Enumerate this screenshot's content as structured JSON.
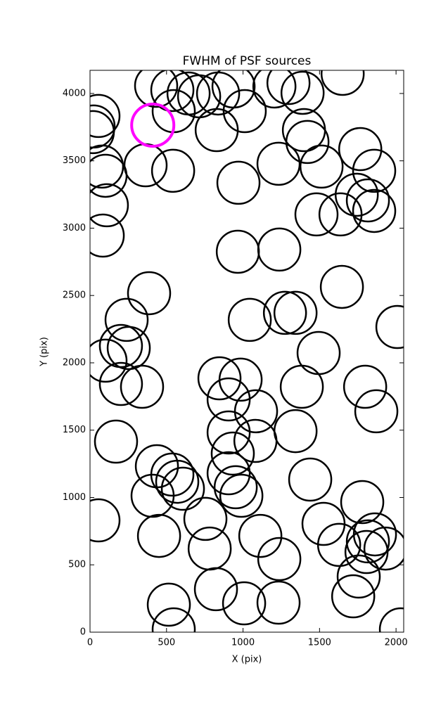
{
  "chart_data": {
    "type": "scatter",
    "title": "FWHM of PSF sources",
    "x_label": "X (pix)",
    "y_label": "Y (pix)",
    "xlim": [
      0,
      2050
    ],
    "ylim": [
      0,
      4172
    ],
    "xticks": [
      0,
      500,
      1000,
      1500,
      2000
    ],
    "yticks": [
      0,
      500,
      1000,
      1500,
      2000,
      2500,
      3000,
      3500,
      4000
    ],
    "series": [
      {
        "color": "#000000",
        "x": [
          55,
          23,
          18,
          78,
          101,
          110,
          83,
          432,
          538,
          547,
          644,
          713,
          837,
          938,
          1011,
          828,
          363,
          543,
          970,
          966,
          1237,
          1205,
          1297,
          1389,
          1398,
          1421,
          1513,
          1232,
          1651,
          1766,
          1857,
          1743,
          1816,
          1857,
          1480,
          1637,
          1646,
          386,
          239,
          202,
          253,
          101,
          202,
          340,
          1044,
          1274,
          1343,
          1494,
          846,
          984,
          906,
          1085,
          1384,
          1798,
          1871,
          906,
          1081,
          1343,
          933,
          170,
          437,
          538,
          570,
          607,
          906,
          952,
          989,
          409,
          1439,
          1779,
          55,
          451,
          754,
          782,
          1113,
          1237,
          1526,
          1628,
          1862,
          1816,
          1807,
          1931,
          1756,
          1720,
          823,
          515,
          547,
          1007,
          1232,
          2032,
          2009
        ],
        "values": [
          3833,
          3755,
          3713,
          3457,
          3389,
          3170,
          2945,
          4057,
          4026,
          3869,
          4000,
          3979,
          4000,
          4052,
          3869,
          3728,
          3467,
          3426,
          3337,
          2825,
          2841,
          4052,
          4078,
          4005,
          3728,
          3640,
          3457,
          3478,
          4146,
          3587,
          3426,
          3248,
          3206,
          3128,
          3102,
          3102,
          2564,
          2517,
          2319,
          2125,
          2110,
          2016,
          1843,
          1822,
          2319,
          2371,
          2371,
          2073,
          1885,
          1875,
          1728,
          1640,
          1822,
          1822,
          1640,
          1483,
          1420,
          1493,
          1326,
          1415,
          1232,
          1170,
          1117,
          1065,
          1180,
          1076,
          1013,
          1013,
          1133,
          966,
          830,
          715,
          841,
          621,
          715,
          543,
          804,
          648,
          726,
          674,
          595,
          621,
          413,
          266,
          319,
          204,
          21,
          214,
          219,
          21,
          2266
        ]
      },
      {
        "color": "#ff00ff",
        "x": [
          410
        ],
        "values": [
          3765
        ]
      }
    ]
  }
}
